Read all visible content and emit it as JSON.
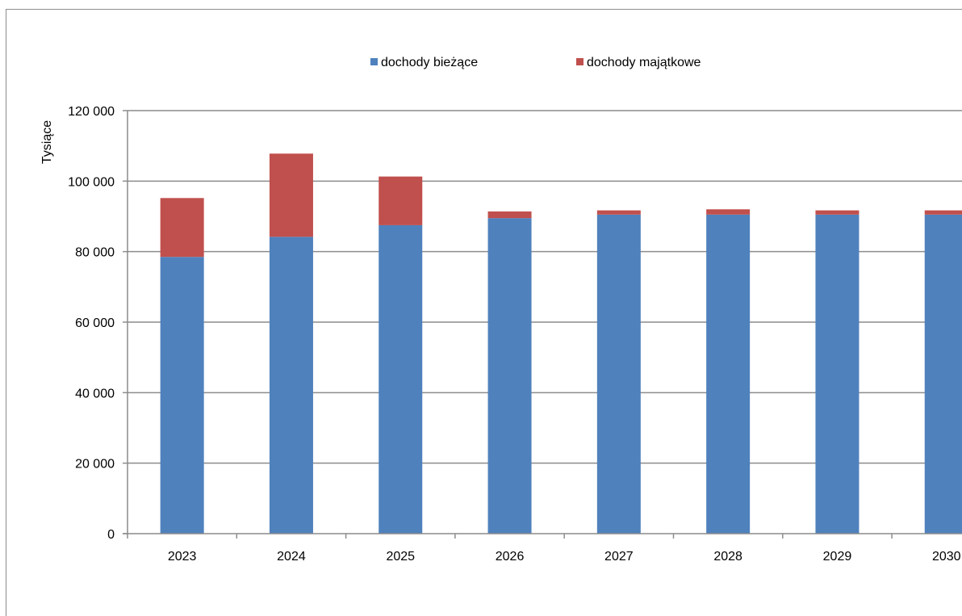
{
  "chart_data": {
    "type": "bar",
    "stacked": true,
    "ylabel": "Tysiące",
    "ylim": [
      0,
      120000
    ],
    "yticks": [
      "0",
      "20 000",
      "40 000",
      "60 000",
      "80 000",
      "100 000",
      "120 000"
    ],
    "ytick_values": [
      0,
      20000,
      40000,
      60000,
      80000,
      100000,
      120000
    ],
    "categories": [
      "2023",
      "2024",
      "2025",
      "2026",
      "2027",
      "2028",
      "2029",
      "2030"
    ],
    "series": [
      {
        "name": "dochody bieżące",
        "color": "#4f81bd",
        "values": [
          78500,
          84200,
          87500,
          89500,
          90500,
          90500,
          90500,
          90500
        ]
      },
      {
        "name": "dochody majątkowe",
        "color": "#c0504d",
        "values": [
          16700,
          23600,
          13800,
          1900,
          1200,
          1500,
          1200,
          1200
        ]
      }
    ],
    "grid": true,
    "legend_position": "top-center"
  }
}
